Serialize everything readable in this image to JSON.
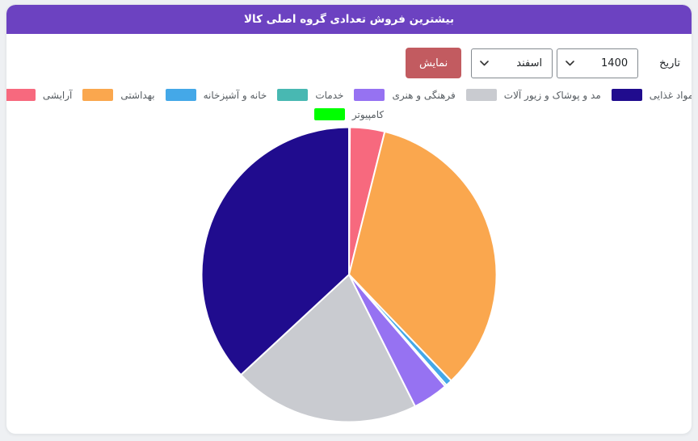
{
  "page": {
    "background_color": "#eef0f3"
  },
  "header": {
    "title": "بیشترین فروش تعدادی گروه اصلی کالا",
    "background_color": "#6c42c1",
    "text_color": "#ffffff"
  },
  "controls": {
    "date_label": "تاریخ",
    "year_select": {
      "value": "1400"
    },
    "month_select": {
      "value": "اسفند"
    },
    "show_button": {
      "label": "نمایش",
      "background_color": "#c25b60"
    }
  },
  "chart_data": {
    "type": "pie",
    "title": "بیشترین فروش تعدادی گروه اصلی کالا",
    "unit": "percent (estimated from slice angles)",
    "start_angle": "12 o'clock",
    "winding": "counterclockwise in series order",
    "legend_position": "top",
    "slice_border_color": "#ffffff",
    "series": [
      {
        "name": "مواد غذایی",
        "value": 36.9,
        "color": "#200c8e"
      },
      {
        "name": "مد و پوشاک و زیور آلات",
        "value": 20.5,
        "color": "#c9cbd0"
      },
      {
        "name": "فرهنگی و هنری",
        "value": 3.9,
        "color": "#9672f2"
      },
      {
        "name": "خدمات",
        "value": 0.2,
        "color": "#48b8b2"
      },
      {
        "name": "خانه و آشپزخانه",
        "value": 0.7,
        "color": "#44a8e8"
      },
      {
        "name": "بهداشتی",
        "value": 33.9,
        "color": "#faa74e"
      },
      {
        "name": "آرایشی",
        "value": 3.8,
        "color": "#f7697e"
      },
      {
        "name": "کامپیوتر",
        "value": 0.1,
        "color": "#00ff00"
      }
    ]
  }
}
